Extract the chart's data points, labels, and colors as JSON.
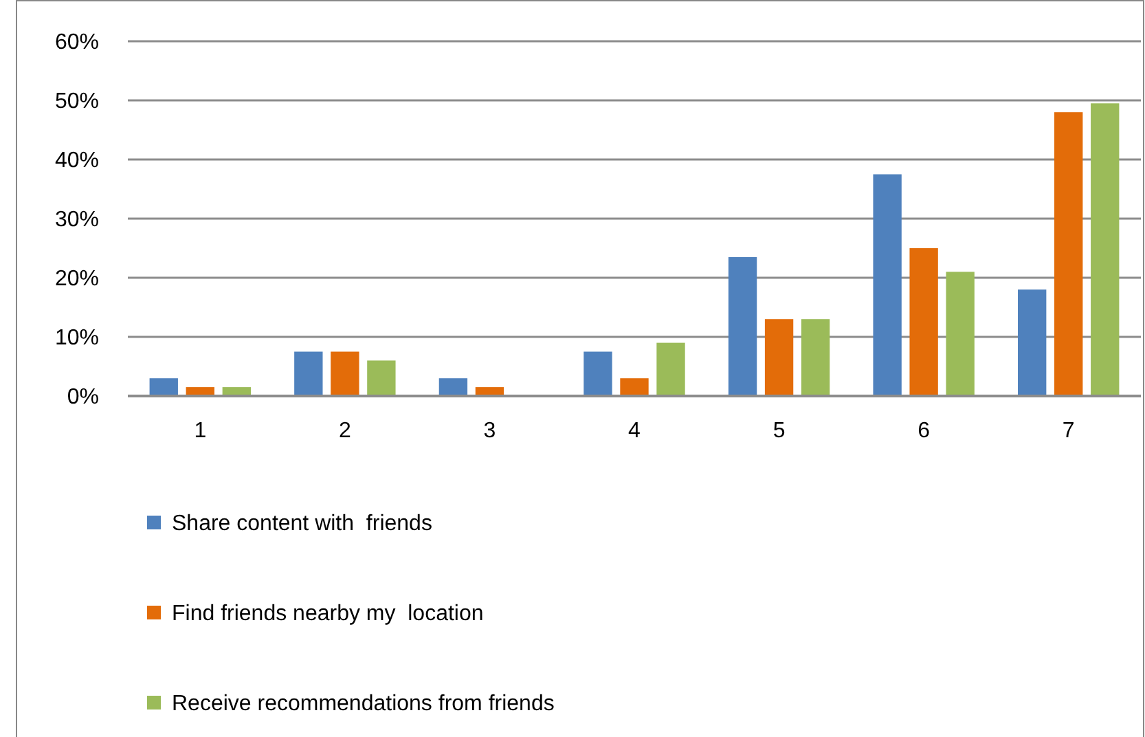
{
  "chart_data": {
    "type": "bar",
    "categories": [
      "1",
      "2",
      "3",
      "4",
      "5",
      "6",
      "7"
    ],
    "series": [
      {
        "name": "Share content with  friends",
        "color": "#4f81bd",
        "values": [
          3,
          7.5,
          3,
          7.5,
          23.5,
          37.5,
          18
        ]
      },
      {
        "name": "Find friends nearby my  location",
        "color": "#e36c09",
        "values": [
          1.5,
          7.5,
          1.5,
          3,
          13,
          25,
          48
        ]
      },
      {
        "name": "Receive recommendations from friends",
        "color": "#9bbb59",
        "values": [
          1.5,
          6,
          0,
          9,
          13,
          21,
          49.5
        ]
      }
    ],
    "ylim": [
      0,
      60
    ],
    "yticks": [
      {
        "value": 0,
        "label": "0%"
      },
      {
        "value": 10,
        "label": "10%"
      },
      {
        "value": 20,
        "label": "20%"
      },
      {
        "value": 30,
        "label": "30%"
      },
      {
        "value": 40,
        "label": "40%"
      },
      {
        "value": 50,
        "label": "50%"
      },
      {
        "value": 60,
        "label": "60%"
      }
    ],
    "grid": "y",
    "legend": "bottom"
  }
}
